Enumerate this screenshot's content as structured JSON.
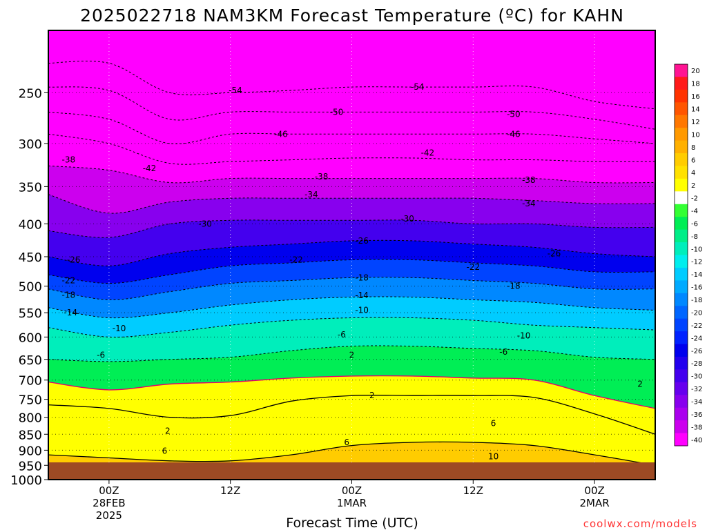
{
  "chart_data": {
    "type": "heatmap",
    "title": "2025022718 NAM3KM Forecast Temperature (ºC) for KAHN",
    "xlabel": "Forecast Time (UTC)",
    "ylabel": "",
    "y_scale": "log",
    "y_inverted": true,
    "ylim": [
      1000,
      200
    ],
    "xlim": [
      -6,
      54
    ],
    "y_ticks": [
      250,
      300,
      350,
      400,
      450,
      500,
      550,
      600,
      650,
      700,
      750,
      800,
      850,
      900,
      950,
      1000
    ],
    "x_ticks": [
      {
        "hour": 0,
        "lines": [
          "00Z",
          "28FEB",
          "2025"
        ]
      },
      {
        "hour": 12,
        "lines": [
          "12Z"
        ]
      },
      {
        "hour": 24,
        "lines": [
          "00Z",
          "1MAR"
        ]
      },
      {
        "hour": 36,
        "lines": [
          "12Z"
        ]
      },
      {
        "hour": 48,
        "lines": [
          "00Z",
          "2MAR"
        ]
      }
    ],
    "colorbar": {
      "levels": [
        20,
        18,
        16,
        14,
        12,
        10,
        8,
        6,
        4,
        2,
        -2,
        -4,
        -6,
        -8,
        -10,
        -12,
        -14,
        -16,
        -18,
        -20,
        -22,
        -24,
        -26,
        -28,
        -30,
        -32,
        -34,
        -36,
        -38,
        -40
      ],
      "colors": [
        "#ff1493",
        "#ff1a1a",
        "#ff3300",
        "#ff5500",
        "#ff7700",
        "#ff9900",
        "#ffb000",
        "#ffcc00",
        "#ffe100",
        "#ffff00",
        "#ffffff",
        "#33ff33",
        "#00ee55",
        "#00ee88",
        "#00eebb",
        "#00eeee",
        "#00ccff",
        "#00aaff",
        "#0088ff",
        "#0066ff",
        "#0044ff",
        "#0022ff",
        "#0000ee",
        "#2200ee",
        "#4400ee",
        "#6600ee",
        "#8800ee",
        "#aa00ee",
        "#cc00ee",
        "#ff00ff"
      ]
    },
    "hours": [
      -6,
      0,
      6,
      12,
      18,
      24,
      30,
      36,
      42,
      48,
      54
    ],
    "isotherms": [
      {
        "temp": 10,
        "pressure": [
          975,
          972,
          990,
          1000,
          960,
          955,
          955,
          950,
          945,
          960,
          1000
        ]
      },
      {
        "temp": 6,
        "pressure": [
          915,
          925,
          935,
          935,
          915,
          885,
          875,
          875,
          885,
          915,
          950
        ]
      },
      {
        "temp": 2,
        "pressure": [
          765,
          775,
          800,
          795,
          755,
          740,
          740,
          740,
          745,
          790,
          850
        ]
      },
      {
        "temp": -2,
        "pressure": [
          705,
          725,
          710,
          705,
          695,
          690,
          690,
          695,
          700,
          740,
          775
        ]
      },
      {
        "temp": -6,
        "pressure": [
          650,
          655,
          650,
          645,
          630,
          620,
          620,
          625,
          630,
          645,
          650
        ]
      },
      {
        "temp": -10,
        "pressure": [
          580,
          600,
          590,
          575,
          565,
          560,
          560,
          565,
          575,
          580,
          585
        ]
      },
      {
        "temp": -14,
        "pressure": [
          540,
          560,
          550,
          535,
          525,
          520,
          520,
          525,
          530,
          540,
          545
        ]
      },
      {
        "temp": -18,
        "pressure": [
          505,
          525,
          510,
          495,
          490,
          485,
          485,
          490,
          495,
          505,
          505
        ]
      },
      {
        "temp": -22,
        "pressure": [
          480,
          495,
          480,
          465,
          460,
          455,
          455,
          460,
          465,
          475,
          475
        ]
      },
      {
        "temp": -26,
        "pressure": [
          450,
          465,
          445,
          435,
          430,
          425,
          425,
          430,
          435,
          445,
          450
        ]
      },
      {
        "temp": -30,
        "pressure": [
          410,
          420,
          400,
          395,
          395,
          395,
          395,
          400,
          400,
          405,
          405
        ]
      },
      {
        "temp": -34,
        "pressure": [
          360,
          385,
          370,
          365,
          365,
          365,
          365,
          365,
          368,
          372,
          372
        ]
      },
      {
        "temp": -38,
        "pressure": [
          325,
          330,
          345,
          340,
          340,
          340,
          340,
          340,
          340,
          345,
          345
        ]
      },
      {
        "temp": -42,
        "pressure": [
          290,
          300,
          322,
          320,
          318,
          316,
          316,
          318,
          318,
          320,
          320
        ]
      },
      {
        "temp": -46,
        "pressure": [
          268,
          275,
          300,
          290,
          290,
          290,
          290,
          290,
          290,
          295,
          300
        ]
      },
      {
        "temp": -50,
        "pressure": [
          245,
          248,
          275,
          268,
          268,
          268,
          268,
          268,
          268,
          275,
          285
        ]
      },
      {
        "temp": -54,
        "pressure": [
          225,
          225,
          250,
          250,
          248,
          245,
          245,
          245,
          245,
          258,
          265
        ]
      }
    ],
    "labels": [
      {
        "hour": 5.5,
        "pressure": 903,
        "text": "6"
      },
      {
        "hour": 5.8,
        "pressure": 840,
        "text": "2"
      },
      {
        "hour": 23.5,
        "pressure": 875,
        "text": "6"
      },
      {
        "hour": 26,
        "pressure": 740,
        "text": "2"
      },
      {
        "hour": 38,
        "pressure": 818,
        "text": "6"
      },
      {
        "hour": 38,
        "pressure": 920,
        "text": "10"
      },
      {
        "hour": 24,
        "pressure": 640,
        "text": "2"
      },
      {
        "hour": 52.5,
        "pressure": 710,
        "text": "2"
      },
      {
        "hour": 39,
        "pressure": 633,
        "text": "-6"
      },
      {
        "hour": -0.8,
        "pressure": 640,
        "text": "-6"
      },
      {
        "hour": 23,
        "pressure": 595,
        "text": "-6"
      },
      {
        "hour": 41,
        "pressure": 597,
        "text": "-10"
      },
      {
        "hour": 1,
        "pressure": 582,
        "text": "-10"
      },
      {
        "hour": 25,
        "pressure": 545,
        "text": "-10"
      },
      {
        "hour": -3.8,
        "pressure": 550,
        "text": "-14"
      },
      {
        "hour": 25,
        "pressure": 517,
        "text": "-14"
      },
      {
        "hour": -4,
        "pressure": 516,
        "text": "-18"
      },
      {
        "hour": 25,
        "pressure": 485,
        "text": "-18"
      },
      {
        "hour": 40,
        "pressure": 500,
        "text": "-18"
      },
      {
        "hour": -4,
        "pressure": 490,
        "text": "-22"
      },
      {
        "hour": 18.5,
        "pressure": 455,
        "text": "-22"
      },
      {
        "hour": 36,
        "pressure": 467,
        "text": "-22"
      },
      {
        "hour": -3.5,
        "pressure": 455,
        "text": "-26"
      },
      {
        "hour": 25,
        "pressure": 425,
        "text": "-26"
      },
      {
        "hour": 44,
        "pressure": 445,
        "text": "-26"
      },
      {
        "hour": 9.5,
        "pressure": 400,
        "text": "-30"
      },
      {
        "hour": 29.5,
        "pressure": 393,
        "text": "-30"
      },
      {
        "hour": 20,
        "pressure": 360,
        "text": "-34"
      },
      {
        "hour": 41.5,
        "pressure": 372,
        "text": "-34"
      },
      {
        "hour": -4,
        "pressure": 318,
        "text": "-38"
      },
      {
        "hour": 21,
        "pressure": 338,
        "text": "-38"
      },
      {
        "hour": 41.5,
        "pressure": 342,
        "text": "-38"
      },
      {
        "hour": 4,
        "pressure": 328,
        "text": "-42"
      },
      {
        "hour": 31.5,
        "pressure": 310,
        "text": "-42"
      },
      {
        "hour": 17,
        "pressure": 290,
        "text": "-46"
      },
      {
        "hour": 40,
        "pressure": 290,
        "text": "-46"
      },
      {
        "hour": 22.5,
        "pressure": 268,
        "text": "-50"
      },
      {
        "hour": 40,
        "pressure": 270,
        "text": "-50"
      },
      {
        "hour": 12.5,
        "pressure": 248,
        "text": "-54"
      },
      {
        "hour": 30.5,
        "pressure": 245,
        "text": "-54"
      }
    ]
  },
  "watermark": "coolwx.com/models"
}
